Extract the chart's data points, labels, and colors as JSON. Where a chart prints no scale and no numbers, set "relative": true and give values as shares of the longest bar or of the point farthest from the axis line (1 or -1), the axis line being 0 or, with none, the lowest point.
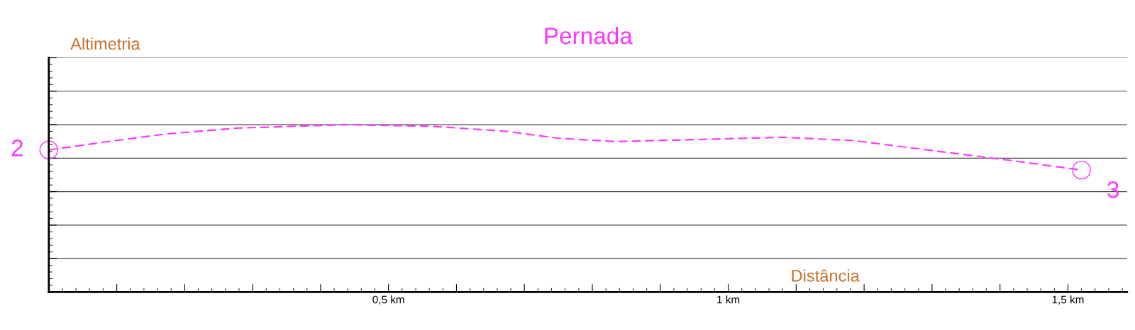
{
  "chart_data": {
    "type": "line",
    "title": "Pernada",
    "ylabel": "Altimetria",
    "xlabel": "Distância",
    "relative": true,
    "x": [
      0.0,
      0.087,
      0.173,
      0.279,
      0.439,
      0.567,
      0.674,
      0.748,
      0.834,
      0.94,
      1.079,
      1.185,
      1.313,
      1.42,
      1.52
    ],
    "series": [
      {
        "color": "#ff33ff",
        "values": [
          0.849,
          0.899,
          0.945,
          0.98,
          1.0,
          0.99,
          0.96,
          0.92,
          0.899,
          0.91,
          0.925,
          0.905,
          0.839,
          0.784,
          0.729
        ]
      }
    ],
    "xlim": [
      0,
      1.587
    ],
    "xticks": [
      {
        "value": 0.1,
        "label": null
      },
      {
        "value": 0.2,
        "label": null
      },
      {
        "value": 0.3,
        "label": null
      },
      {
        "value": 0.4,
        "label": null
      },
      {
        "value": 0.5,
        "label": "0,5 km"
      },
      {
        "value": 0.6,
        "label": null
      },
      {
        "value": 0.7,
        "label": null
      },
      {
        "value": 0.8,
        "label": null
      },
      {
        "value": 0.9,
        "label": null
      },
      {
        "value": 1.0,
        "label": "1 km"
      },
      {
        "value": 1.1,
        "label": null
      },
      {
        "value": 1.2,
        "label": null
      },
      {
        "value": 1.3,
        "label": null
      },
      {
        "value": 1.4,
        "label": null
      },
      {
        "value": 1.5,
        "label": "1,5 km"
      }
    ],
    "annotations": [
      {
        "text": "2",
        "x": 0.0,
        "y": 0.849
      },
      {
        "text": "3",
        "x": 1.52,
        "y": 0.729
      }
    ],
    "grid": "y",
    "line_style": "dashed",
    "marker": "none",
    "legend": false
  }
}
